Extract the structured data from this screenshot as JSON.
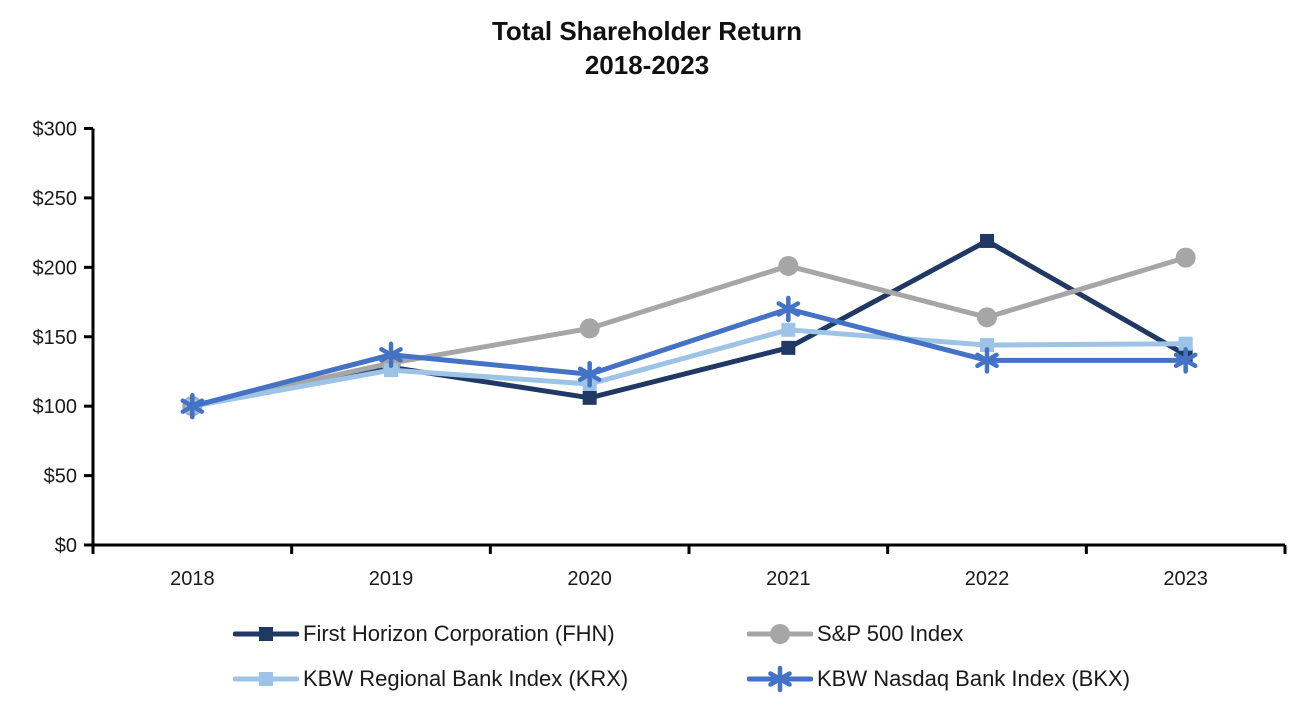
{
  "title": {
    "line1": "Total Shareholder Return",
    "line2": "2018-2023"
  },
  "chart_data": {
    "type": "line",
    "x_labels": [
      "2018",
      "2019",
      "2020",
      "2021",
      "2022",
      "2023"
    ],
    "series": [
      {
        "name": "First Horizon Corporation (FHN)",
        "marker": "square",
        "color": "#1F3864",
        "values": [
          100,
          128,
          106,
          142,
          219,
          137
        ]
      },
      {
        "name": "S&P 500 Index",
        "marker": "circle",
        "color": "#A6A6A6",
        "values": [
          100,
          131,
          156,
          201,
          164,
          207
        ]
      },
      {
        "name": "KBW Regional Bank Index (KRX)",
        "marker": "square",
        "color": "#9DC3E6",
        "values": [
          100,
          126,
          116,
          155,
          144,
          145
        ]
      },
      {
        "name": "KBW Nasdaq Bank Index (BKX)",
        "marker": "asterisk",
        "color": "#4472C4",
        "values": [
          100,
          137,
          123,
          170,
          133,
          133
        ]
      }
    ],
    "ylim": [
      0,
      300
    ],
    "ytick_step": 50,
    "ytick_labels": [
      "$0",
      "$50",
      "$100",
      "$150",
      "$200",
      "$250",
      "$300"
    ],
    "grid": false,
    "legend_position": "bottom",
    "axis_color": "#000000"
  }
}
